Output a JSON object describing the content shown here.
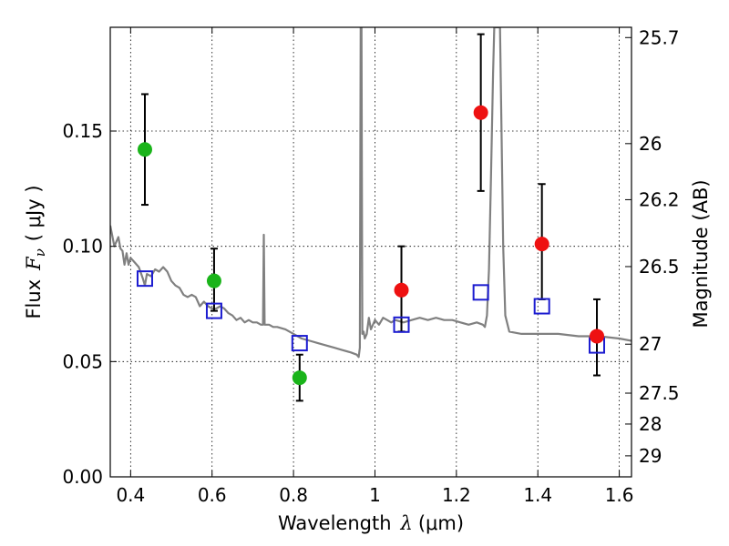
{
  "chart_data": {
    "type": "scatter",
    "title": "",
    "xlabel": {
      "prefix": "Wavelength",
      "symbol": "λ",
      "unit": "(μm)"
    },
    "ylabel": {
      "prefix": "Flux",
      "symbol": "F",
      "subscript": "ν",
      "unit": "( μJy )"
    },
    "y2label": "Magnitude (AB)",
    "xlim": [
      0.35,
      1.63
    ],
    "ylim": [
      0.0,
      0.195
    ],
    "grid": true,
    "x_ticks": [
      0.4,
      0.6,
      0.8,
      1.0,
      1.2,
      1.4,
      1.6
    ],
    "x_tick_labels": [
      "0.4",
      "0.6",
      "0.8",
      "1",
      "1.2",
      "1.4",
      "1.6"
    ],
    "y_ticks": [
      0.0,
      0.05,
      0.1,
      0.15
    ],
    "y_tick_labels": [
      "0.00",
      "0.05",
      "0.10",
      "0.15"
    ],
    "y2_ticks": [
      {
        "label": "25.7",
        "mag": 25.7
      },
      {
        "label": "26",
        "mag": 26.0
      },
      {
        "label": "26.2",
        "mag": 26.2
      },
      {
        "label": "26.5",
        "mag": 26.5
      },
      {
        "label": "27",
        "mag": 27.0
      },
      {
        "label": "27.5",
        "mag": 27.5
      },
      {
        "label": "28",
        "mag": 28.0
      },
      {
        "label": "29",
        "mag": 29.0
      }
    ],
    "series": [
      {
        "name": "green photometry",
        "marker": "circle",
        "color": "#1ab41a",
        "points": [
          {
            "x": 0.435,
            "y": 0.142,
            "err_lo": 0.118,
            "err_hi": 0.166
          },
          {
            "x": 0.605,
            "y": 0.085,
            "err_lo": 0.072,
            "err_hi": 0.099
          },
          {
            "x": 0.815,
            "y": 0.043,
            "err_lo": 0.033,
            "err_hi": 0.053
          }
        ]
      },
      {
        "name": "red photometry",
        "marker": "circle",
        "color": "#ee1111",
        "points": [
          {
            "x": 1.065,
            "y": 0.081,
            "err_lo": 0.063,
            "err_hi": 0.1
          },
          {
            "x": 1.26,
            "y": 0.158,
            "err_lo": 0.124,
            "err_hi": 0.192
          },
          {
            "x": 1.41,
            "y": 0.101,
            "err_lo": 0.077,
            "err_hi": 0.127
          },
          {
            "x": 1.545,
            "y": 0.061,
            "err_lo": 0.044,
            "err_hi": 0.077
          }
        ]
      },
      {
        "name": "model photometry",
        "marker": "open-square",
        "color": "#1c1cd0",
        "points": [
          {
            "x": 0.435,
            "y": 0.086
          },
          {
            "x": 0.605,
            "y": 0.072
          },
          {
            "x": 0.815,
            "y": 0.058
          },
          {
            "x": 1.065,
            "y": 0.066
          },
          {
            "x": 1.26,
            "y": 0.08
          },
          {
            "x": 1.41,
            "y": 0.074
          },
          {
            "x": 1.545,
            "y": 0.057
          }
        ]
      },
      {
        "name": "model spectrum",
        "marker": "line",
        "color": "#808080",
        "points": [
          [
            0.35,
            0.109
          ],
          [
            0.36,
            0.1
          ],
          [
            0.365,
            0.102
          ],
          [
            0.37,
            0.104
          ],
          [
            0.375,
            0.099
          ],
          [
            0.38,
            0.098
          ],
          [
            0.385,
            0.092
          ],
          [
            0.39,
            0.097
          ],
          [
            0.395,
            0.092
          ],
          [
            0.4,
            0.095
          ],
          [
            0.41,
            0.093
          ],
          [
            0.42,
            0.091
          ],
          [
            0.43,
            0.086
          ],
          [
            0.435,
            0.083
          ],
          [
            0.44,
            0.088
          ],
          [
            0.45,
            0.087
          ],
          [
            0.46,
            0.09
          ],
          [
            0.47,
            0.089
          ],
          [
            0.48,
            0.091
          ],
          [
            0.49,
            0.089
          ],
          [
            0.5,
            0.085
          ],
          [
            0.51,
            0.083
          ],
          [
            0.52,
            0.082
          ],
          [
            0.53,
            0.079
          ],
          [
            0.54,
            0.078
          ],
          [
            0.55,
            0.079
          ],
          [
            0.56,
            0.078
          ],
          [
            0.57,
            0.074
          ],
          [
            0.58,
            0.076
          ],
          [
            0.59,
            0.074
          ],
          [
            0.6,
            0.073
          ],
          [
            0.61,
            0.073
          ],
          [
            0.62,
            0.074
          ],
          [
            0.63,
            0.073
          ],
          [
            0.64,
            0.071
          ],
          [
            0.65,
            0.07
          ],
          [
            0.66,
            0.068
          ],
          [
            0.67,
            0.069
          ],
          [
            0.68,
            0.067
          ],
          [
            0.69,
            0.068
          ],
          [
            0.7,
            0.067
          ],
          [
            0.71,
            0.067
          ],
          [
            0.72,
            0.066
          ],
          [
            0.725,
            0.066
          ],
          [
            0.727,
            0.105
          ],
          [
            0.729,
            0.066
          ],
          [
            0.74,
            0.066
          ],
          [
            0.75,
            0.065
          ],
          [
            0.76,
            0.065
          ],
          [
            0.78,
            0.064
          ],
          [
            0.8,
            0.062
          ],
          [
            0.82,
            0.06
          ],
          [
            0.84,
            0.059
          ],
          [
            0.86,
            0.058
          ],
          [
            0.88,
            0.057
          ],
          [
            0.9,
            0.056
          ],
          [
            0.92,
            0.055
          ],
          [
            0.94,
            0.054
          ],
          [
            0.955,
            0.053
          ],
          [
            0.96,
            0.052
          ],
          [
            0.963,
            0.056
          ],
          [
            0.965,
            0.195
          ],
          [
            0.967,
            0.195
          ],
          [
            0.969,
            0.062
          ],
          [
            0.972,
            0.063
          ],
          [
            0.975,
            0.06
          ],
          [
            0.98,
            0.062
          ],
          [
            0.985,
            0.069
          ],
          [
            0.99,
            0.064
          ],
          [
            1.0,
            0.068
          ],
          [
            1.01,
            0.066
          ],
          [
            1.02,
            0.069
          ],
          [
            1.03,
            0.068
          ],
          [
            1.04,
            0.067
          ],
          [
            1.05,
            0.068
          ],
          [
            1.07,
            0.067
          ],
          [
            1.09,
            0.068
          ],
          [
            1.11,
            0.069
          ],
          [
            1.13,
            0.068
          ],
          [
            1.15,
            0.069
          ],
          [
            1.17,
            0.068
          ],
          [
            1.19,
            0.068
          ],
          [
            1.21,
            0.067
          ],
          [
            1.23,
            0.066
          ],
          [
            1.25,
            0.067
          ],
          [
            1.265,
            0.066
          ],
          [
            1.27,
            0.065
          ],
          [
            1.275,
            0.07
          ],
          [
            1.28,
            0.09
          ],
          [
            1.285,
            0.13
          ],
          [
            1.29,
            0.175
          ],
          [
            1.293,
            0.195
          ],
          [
            1.307,
            0.195
          ],
          [
            1.31,
            0.16
          ],
          [
            1.315,
            0.1
          ],
          [
            1.32,
            0.07
          ],
          [
            1.33,
            0.063
          ],
          [
            1.36,
            0.062
          ],
          [
            1.4,
            0.062
          ],
          [
            1.45,
            0.062
          ],
          [
            1.5,
            0.061
          ],
          [
            1.55,
            0.061
          ],
          [
            1.6,
            0.06
          ],
          [
            1.63,
            0.059
          ]
        ]
      }
    ]
  }
}
